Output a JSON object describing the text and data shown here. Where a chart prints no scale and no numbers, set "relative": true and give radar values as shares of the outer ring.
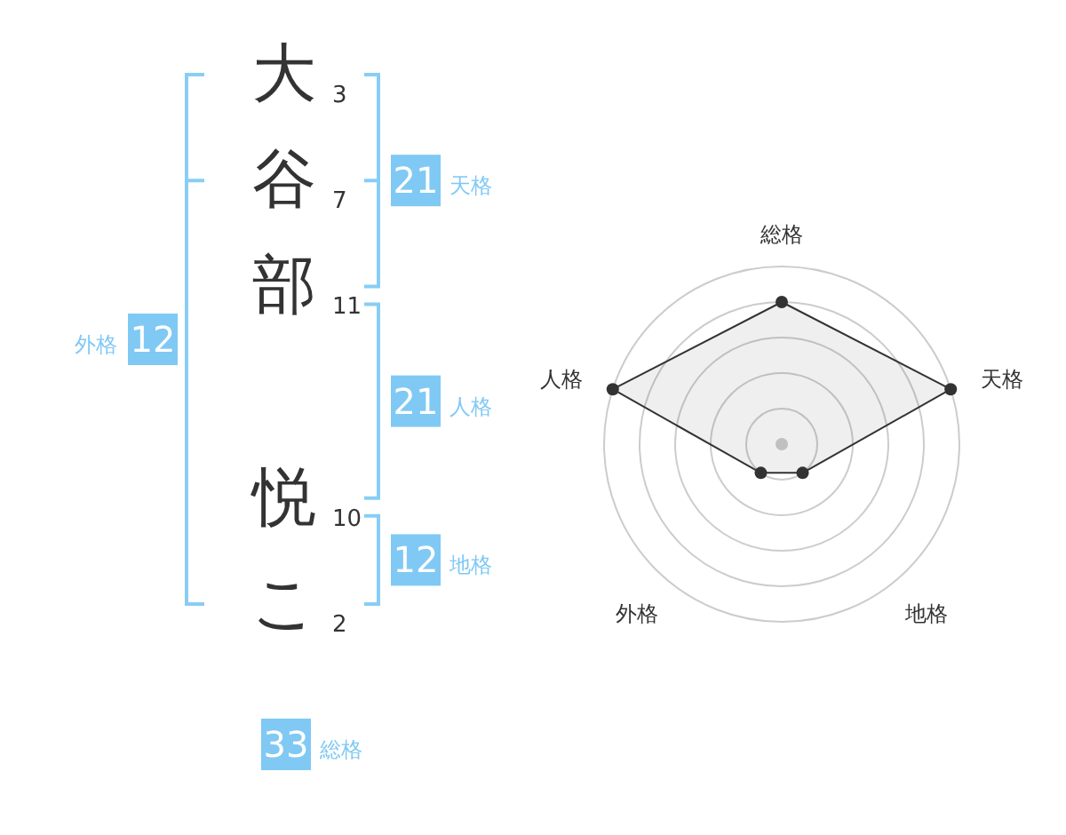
{
  "chart_data": [
    {
      "type": "other",
      "categories": [
        "大",
        "谷",
        "部",
        null,
        "悦",
        "こ"
      ],
      "values": [
        3,
        7,
        11,
        null,
        10,
        2
      ],
      "data_labels": true,
      "annotations": [
        "21",
        "天格",
        "12",
        "外格",
        "21",
        "人格",
        "12",
        "地格",
        "33",
        "総格"
      ]
    },
    {
      "type": "radar",
      "categories": [
        "総格",
        "天格",
        "地格",
        "外格",
        "人格"
      ],
      "relative": true,
      "grid": true,
      "marker": "circle",
      "series": [
        {
          "color": "#333333",
          "values": [
            0.8,
            1,
            0.2,
            0.2,
            1
          ]
        }
      ]
    }
  ]
}
